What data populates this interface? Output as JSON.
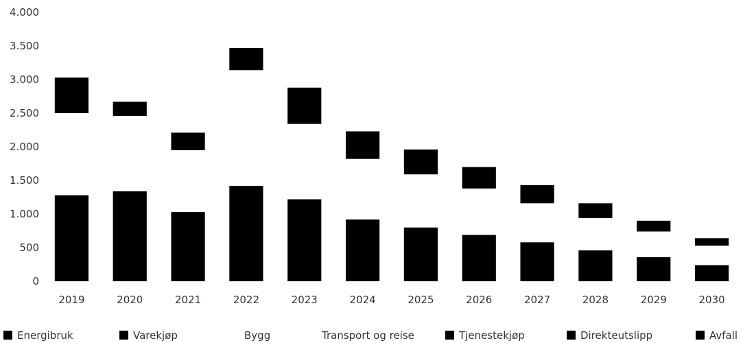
{
  "chart_data": {
    "type": "bar",
    "stacked": true,
    "categories": [
      "2019",
      "2020",
      "2021",
      "2022",
      "2023",
      "2024",
      "2025",
      "2026",
      "2027",
      "2028",
      "2029",
      "2030"
    ],
    "ylim": [
      0,
      4000
    ],
    "yticks": [
      0,
      500,
      1000,
      1500,
      2000,
      2500,
      3000,
      3500,
      4000
    ],
    "ytick_labels": [
      "0",
      "500",
      "1.000",
      "1.500",
      "2.000",
      "2.500",
      "3.000",
      "3.500",
      "4.000"
    ],
    "grid": false,
    "legend_position": "bottom",
    "series": [
      {
        "name": "Energibruk",
        "color": "#000000",
        "values": [
          1280,
          1340,
          1030,
          1420,
          1220,
          920,
          800,
          690,
          580,
          460,
          360,
          240
        ],
        "legend_marker": true
      },
      {
        "name": "Varekjøp",
        "color": "#ffffff",
        "values": [
          1220,
          1120,
          920,
          1720,
          1120,
          900,
          790,
          690,
          580,
          480,
          380,
          290
        ],
        "legend_marker": true
      },
      {
        "name": "Bygg",
        "color": "#000000",
        "values": [
          530,
          210,
          260,
          330,
          540,
          410,
          370,
          320,
          270,
          220,
          160,
          110
        ],
        "legend_marker": false
      },
      {
        "name": "Transport og reise",
        "color": "#ffffff",
        "values": [
          0,
          0,
          0,
          0,
          0,
          0,
          0,
          0,
          0,
          0,
          0,
          0
        ],
        "legend_marker": false
      },
      {
        "name": "Tjenestekjøp",
        "color": "#000000",
        "values": [
          0,
          0,
          0,
          0,
          0,
          0,
          0,
          0,
          0,
          0,
          0,
          0
        ],
        "legend_marker": true
      },
      {
        "name": "Direkteutslipp",
        "color": "#000000",
        "values": [
          0,
          0,
          0,
          0,
          0,
          0,
          0,
          0,
          0,
          0,
          0,
          0
        ],
        "legend_marker": true
      },
      {
        "name": "Avfall",
        "color": "#000000",
        "values": [
          0,
          0,
          0,
          0,
          0,
          0,
          0,
          0,
          0,
          0,
          0,
          0
        ],
        "legend_marker": true
      }
    ]
  }
}
